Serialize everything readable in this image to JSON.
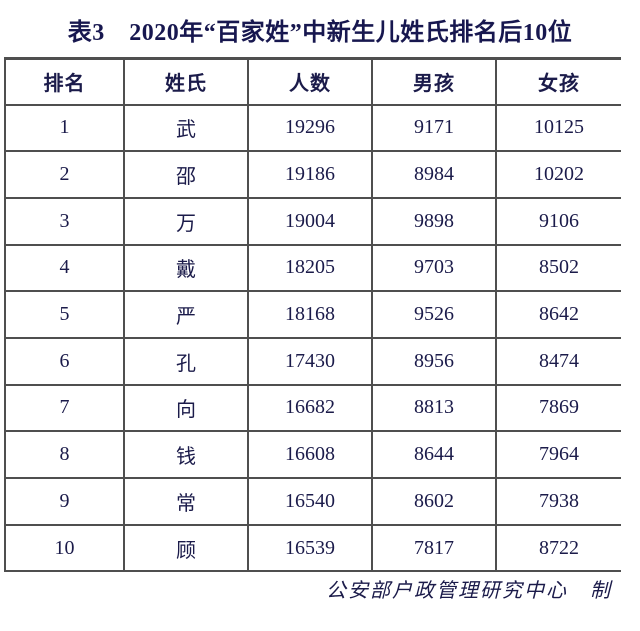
{
  "title": "表3　2020年“百家姓”中新生儿姓氏排名后10位",
  "table": {
    "headers": [
      "排名",
      "姓氏",
      "人数",
      "男孩",
      "女孩"
    ],
    "rows": [
      [
        "1",
        "武",
        "19296",
        "9171",
        "10125"
      ],
      [
        "2",
        "邵",
        "19186",
        "8984",
        "10202"
      ],
      [
        "3",
        "万",
        "19004",
        "9898",
        "9106"
      ],
      [
        "4",
        "戴",
        "18205",
        "9703",
        "8502"
      ],
      [
        "5",
        "严",
        "18168",
        "9526",
        "8642"
      ],
      [
        "6",
        "孔",
        "17430",
        "8956",
        "8474"
      ],
      [
        "7",
        "向",
        "16682",
        "8813",
        "7869"
      ],
      [
        "8",
        "钱",
        "16608",
        "8644",
        "7964"
      ],
      [
        "9",
        "常",
        "16540",
        "8602",
        "7938"
      ],
      [
        "10",
        "顾",
        "16539",
        "7817",
        "8722"
      ]
    ]
  },
  "footer": {
    "credit": "公安部户政管理研究中心　制"
  },
  "colors": {
    "background": "#ffffff",
    "text": "#1b1b4a",
    "title_text": "#17174f",
    "border": "#4f4f4f"
  }
}
